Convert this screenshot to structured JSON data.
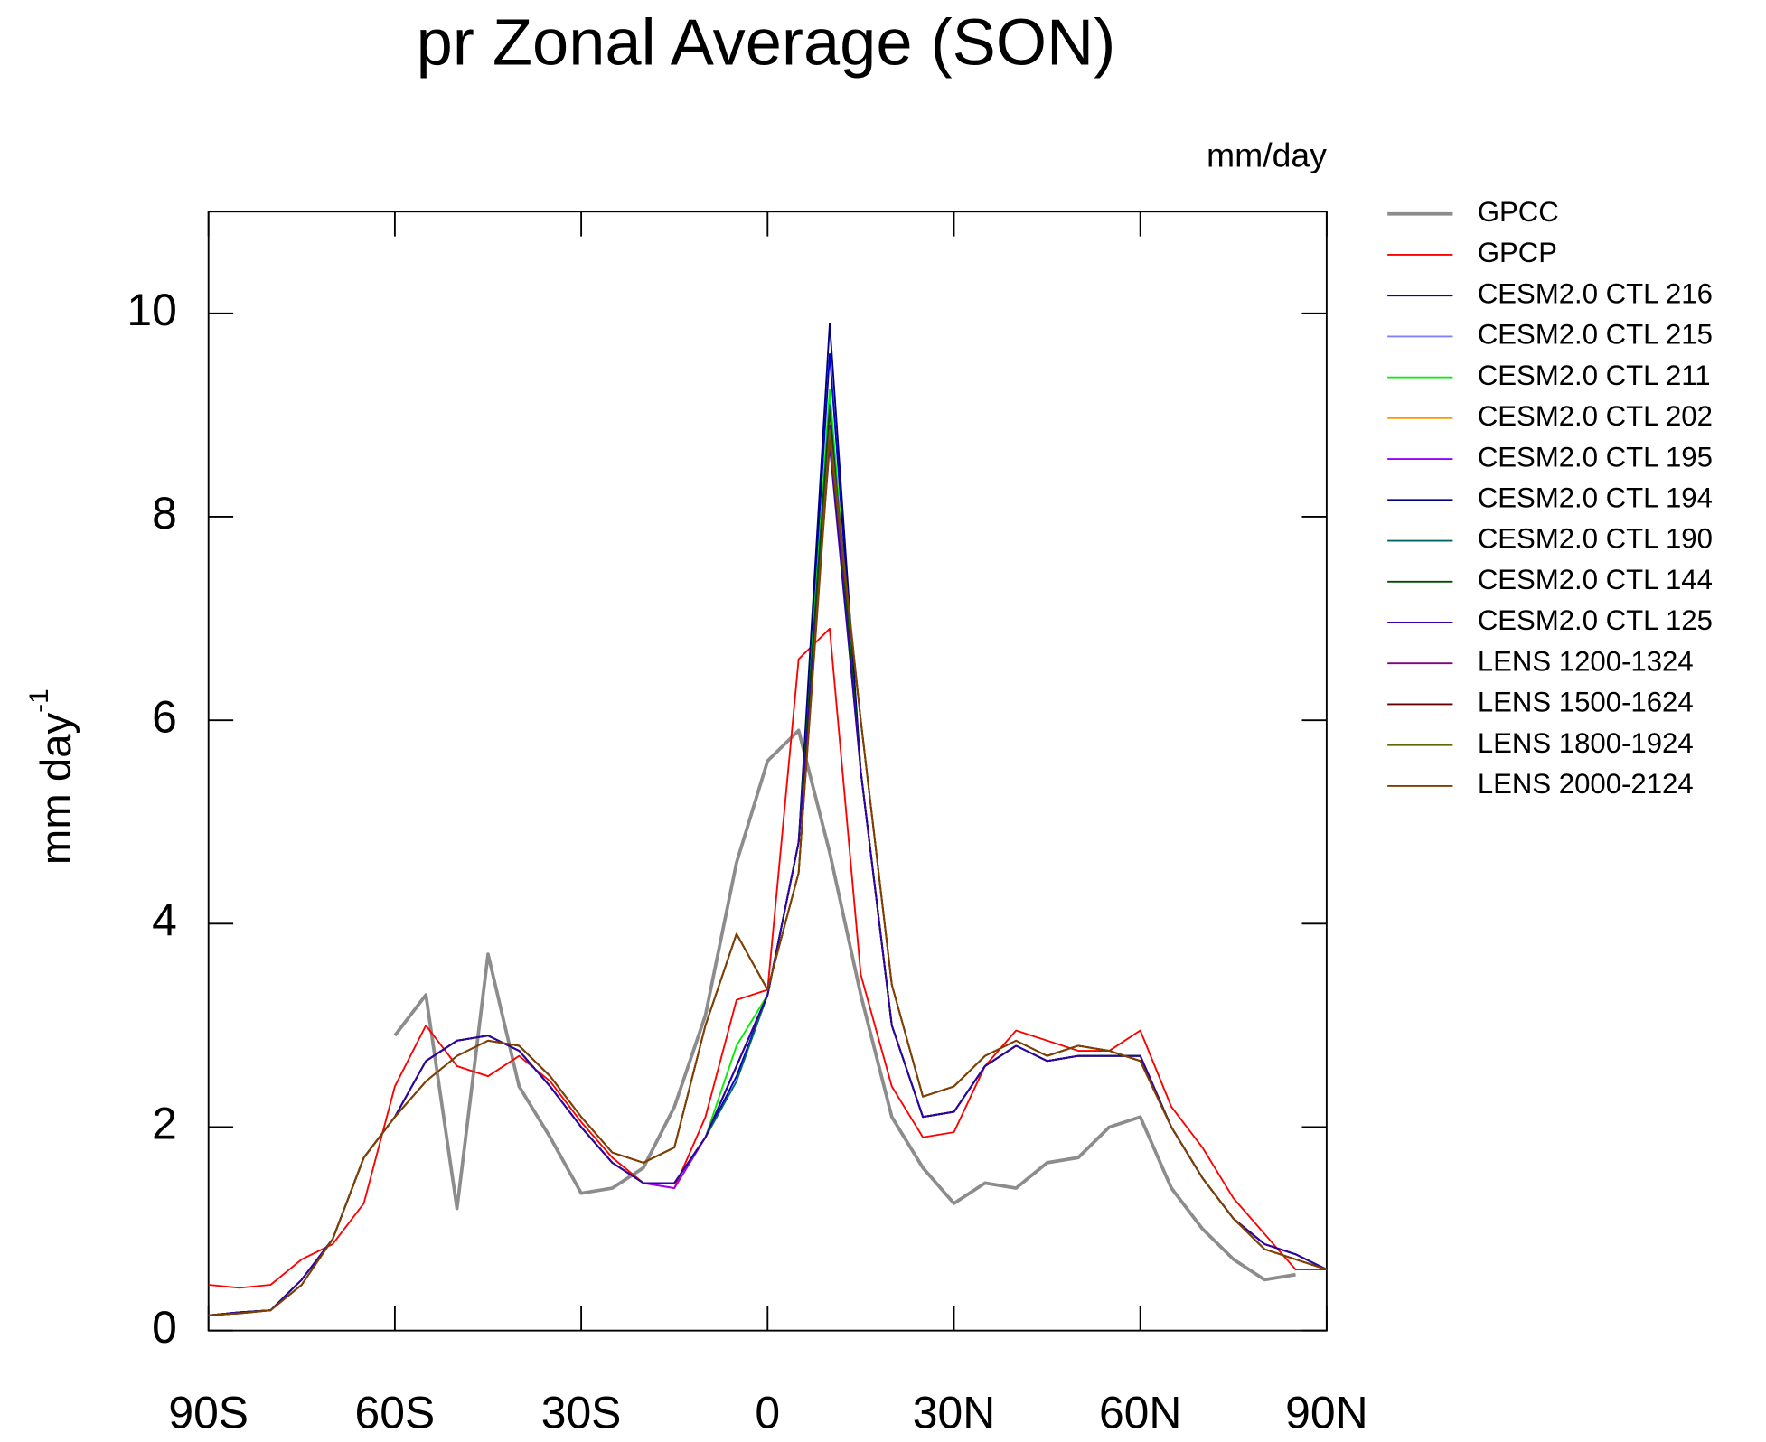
{
  "chart_data": {
    "type": "line",
    "title": "pr Zonal Average (SON)",
    "units": "mm/day",
    "ylabel": "mm day",
    "ylabel_exponent": "-1",
    "x": [
      -90,
      -85,
      -80,
      -75,
      -70,
      -65,
      -60,
      -55,
      -50,
      -45,
      -40,
      -35,
      -30,
      -25,
      -20,
      -15,
      -10,
      -5,
      0,
      5,
      10,
      15,
      20,
      25,
      30,
      35,
      40,
      45,
      50,
      55,
      60,
      65,
      70,
      75,
      80,
      85,
      90
    ],
    "xlim": [
      -90,
      90
    ],
    "xticks": [
      {
        "value": -90,
        "label": "90S"
      },
      {
        "value": -60,
        "label": "60S"
      },
      {
        "value": -30,
        "label": "30S"
      },
      0,
      {
        "value": 30,
        "label": "30N"
      },
      {
        "value": 60,
        "label": "60N"
      },
      {
        "value": 90,
        "label": "90N"
      }
    ],
    "ylim": [
      0,
      11
    ],
    "yticks": [
      0,
      2,
      4,
      6,
      8,
      10
    ],
    "series": [
      {
        "name": "GPCC",
        "color": "#8c8c8c",
        "values": [
          null,
          null,
          null,
          null,
          null,
          null,
          2.9,
          3.3,
          1.2,
          3.7,
          2.4,
          1.9,
          1.35,
          1.4,
          1.6,
          2.2,
          3.1,
          4.6,
          5.6,
          5.9,
          4.7,
          3.3,
          2.1,
          1.6,
          1.25,
          1.45,
          1.4,
          1.65,
          1.7,
          2.0,
          2.1,
          1.4,
          1.0,
          0.7,
          0.5,
          0.55,
          null
        ]
      },
      {
        "name": "GPCP",
        "color": "#ff0000",
        "values": [
          0.45,
          0.42,
          0.45,
          0.7,
          0.85,
          1.25,
          2.4,
          3.0,
          2.6,
          2.5,
          2.7,
          2.45,
          2.05,
          1.7,
          1.45,
          1.4,
          2.1,
          3.25,
          3.35,
          6.6,
          6.9,
          3.5,
          2.4,
          1.9,
          1.95,
          2.6,
          2.95,
          2.85,
          2.75,
          2.75,
          2.95,
          2.2,
          1.8,
          1.3,
          0.95,
          0.6,
          0.6
        ]
      },
      {
        "name": "CESM2.0 CTL 216",
        "color": "#0000cc",
        "values": [
          0.15,
          0.18,
          0.2,
          0.5,
          0.9,
          1.7,
          2.1,
          2.65,
          2.85,
          2.9,
          2.75,
          2.4,
          2.0,
          1.65,
          1.45,
          1.45,
          1.9,
          2.5,
          3.3,
          4.8,
          9.6,
          5.5,
          3.0,
          2.1,
          2.15,
          2.6,
          2.8,
          2.65,
          2.7,
          2.7,
          2.7,
          2.0,
          1.5,
          1.1,
          0.85,
          0.75,
          0.6
        ]
      },
      {
        "name": "CESM2.0 CTL 215",
        "color": "#8080ff",
        "values": [
          0.15,
          0.18,
          0.2,
          0.5,
          0.9,
          1.7,
          2.1,
          2.65,
          2.85,
          2.9,
          2.75,
          2.4,
          2.0,
          1.65,
          1.45,
          1.45,
          1.9,
          2.6,
          3.3,
          4.8,
          9.2,
          5.5,
          3.0,
          2.1,
          2.15,
          2.6,
          2.8,
          2.65,
          2.7,
          2.7,
          2.7,
          2.0,
          1.5,
          1.1,
          0.85,
          0.75,
          0.6
        ]
      },
      {
        "name": "CESM2.0 CTL 211",
        "color": "#00ee00",
        "values": [
          0.15,
          0.18,
          0.2,
          0.5,
          0.9,
          1.7,
          2.1,
          2.65,
          2.85,
          2.9,
          2.75,
          2.4,
          2.0,
          1.65,
          1.45,
          1.45,
          1.9,
          2.8,
          3.3,
          4.8,
          9.25,
          5.5,
          3.0,
          2.1,
          2.15,
          2.6,
          2.8,
          2.65,
          2.7,
          2.7,
          2.7,
          2.0,
          1.5,
          1.1,
          0.85,
          0.75,
          0.6
        ]
      },
      {
        "name": "CESM2.0 CTL 202",
        "color": "#ff9900",
        "values": [
          0.15,
          0.18,
          0.2,
          0.5,
          0.9,
          1.7,
          2.1,
          2.65,
          2.85,
          2.9,
          2.75,
          2.4,
          2.0,
          1.65,
          1.45,
          1.45,
          1.9,
          2.6,
          3.3,
          4.8,
          8.9,
          5.5,
          3.0,
          2.1,
          2.15,
          2.6,
          2.8,
          2.65,
          2.7,
          2.7,
          2.7,
          2.0,
          1.5,
          1.1,
          0.85,
          0.75,
          0.6
        ]
      },
      {
        "name": "CESM2.0 CTL 195",
        "color": "#9900ff",
        "values": [
          0.15,
          0.18,
          0.2,
          0.5,
          0.9,
          1.7,
          2.1,
          2.65,
          2.85,
          2.9,
          2.75,
          2.4,
          2.0,
          1.65,
          1.45,
          1.4,
          1.9,
          2.6,
          3.3,
          4.8,
          8.8,
          5.5,
          3.0,
          2.1,
          2.15,
          2.6,
          2.8,
          2.65,
          2.7,
          2.7,
          2.7,
          2.0,
          1.5,
          1.1,
          0.85,
          0.75,
          0.6
        ]
      },
      {
        "name": "CESM2.0 CTL 194",
        "color": "#000080",
        "values": [
          0.15,
          0.18,
          0.2,
          0.5,
          0.9,
          1.7,
          2.1,
          2.65,
          2.85,
          2.9,
          2.75,
          2.4,
          2.0,
          1.65,
          1.45,
          1.45,
          1.9,
          2.6,
          3.3,
          4.8,
          9.9,
          5.5,
          3.0,
          2.1,
          2.15,
          2.6,
          2.8,
          2.65,
          2.7,
          2.7,
          2.7,
          2.0,
          1.5,
          1.1,
          0.85,
          0.75,
          0.6
        ]
      },
      {
        "name": "CESM2.0 CTL 190",
        "color": "#006666",
        "values": [
          0.15,
          0.18,
          0.2,
          0.5,
          0.9,
          1.7,
          2.1,
          2.65,
          2.85,
          2.9,
          2.75,
          2.4,
          2.0,
          1.65,
          1.45,
          1.45,
          1.9,
          2.45,
          3.3,
          4.8,
          9.1,
          5.5,
          3.0,
          2.1,
          2.15,
          2.6,
          2.8,
          2.65,
          2.7,
          2.7,
          2.7,
          2.0,
          1.5,
          1.1,
          0.85,
          0.75,
          0.6
        ]
      },
      {
        "name": "CESM2.0 CTL 144",
        "color": "#004d00",
        "values": [
          0.15,
          0.18,
          0.2,
          0.5,
          0.9,
          1.7,
          2.1,
          2.65,
          2.85,
          2.9,
          2.75,
          2.4,
          2.0,
          1.65,
          1.45,
          1.45,
          1.9,
          2.6,
          3.3,
          4.8,
          9.05,
          5.5,
          3.0,
          2.1,
          2.15,
          2.6,
          2.8,
          2.65,
          2.7,
          2.7,
          2.7,
          2.0,
          1.5,
          1.1,
          0.85,
          0.75,
          0.6
        ]
      },
      {
        "name": "CESM2.0 CTL 125",
        "color": "#3300aa",
        "values": [
          0.15,
          0.18,
          0.2,
          0.5,
          0.9,
          1.7,
          2.1,
          2.65,
          2.85,
          2.9,
          2.75,
          2.4,
          2.0,
          1.65,
          1.45,
          1.45,
          1.9,
          2.6,
          3.3,
          4.8,
          8.7,
          5.5,
          3.0,
          2.1,
          2.15,
          2.6,
          2.8,
          2.65,
          2.7,
          2.7,
          2.7,
          2.0,
          1.5,
          1.1,
          0.85,
          0.75,
          0.6
        ]
      },
      {
        "name": "LENS 1200-1324",
        "color": "#800080",
        "values": [
          0.15,
          0.17,
          0.2,
          0.45,
          0.9,
          1.7,
          2.1,
          2.45,
          2.7,
          2.85,
          2.8,
          2.5,
          2.1,
          1.75,
          1.65,
          1.8,
          3.0,
          3.9,
          3.35,
          4.5,
          8.9,
          6.0,
          3.4,
          2.3,
          2.4,
          2.7,
          2.85,
          2.7,
          2.8,
          2.75,
          2.65,
          2.0,
          1.5,
          1.1,
          0.8,
          0.7,
          0.6
        ]
      },
      {
        "name": "LENS 1500-1624",
        "color": "#660000",
        "values": [
          0.15,
          0.17,
          0.2,
          0.45,
          0.9,
          1.7,
          2.1,
          2.45,
          2.7,
          2.85,
          2.8,
          2.5,
          2.1,
          1.75,
          1.65,
          1.8,
          3.0,
          3.9,
          3.35,
          4.5,
          8.8,
          6.0,
          3.4,
          2.3,
          2.4,
          2.7,
          2.85,
          2.7,
          2.8,
          2.75,
          2.65,
          2.0,
          1.5,
          1.1,
          0.8,
          0.7,
          0.6
        ]
      },
      {
        "name": "LENS 1800-1924",
        "color": "#666600",
        "values": [
          0.15,
          0.17,
          0.2,
          0.45,
          0.9,
          1.7,
          2.1,
          2.45,
          2.7,
          2.85,
          2.8,
          2.5,
          2.1,
          1.75,
          1.65,
          1.8,
          3.0,
          3.9,
          3.35,
          4.5,
          8.85,
          6.0,
          3.4,
          2.3,
          2.4,
          2.7,
          2.85,
          2.7,
          2.8,
          2.75,
          2.65,
          2.0,
          1.5,
          1.1,
          0.8,
          0.7,
          0.6
        ]
      },
      {
        "name": "LENS 2000-2124",
        "color": "#804000",
        "values": [
          0.15,
          0.17,
          0.2,
          0.45,
          0.9,
          1.7,
          2.1,
          2.45,
          2.7,
          2.85,
          2.8,
          2.5,
          2.1,
          1.75,
          1.65,
          1.8,
          3.0,
          3.9,
          3.35,
          4.5,
          8.75,
          6.0,
          3.4,
          2.3,
          2.4,
          2.7,
          2.85,
          2.7,
          2.8,
          2.75,
          2.65,
          2.0,
          1.5,
          1.1,
          0.8,
          0.7,
          0.6
        ]
      }
    ]
  }
}
